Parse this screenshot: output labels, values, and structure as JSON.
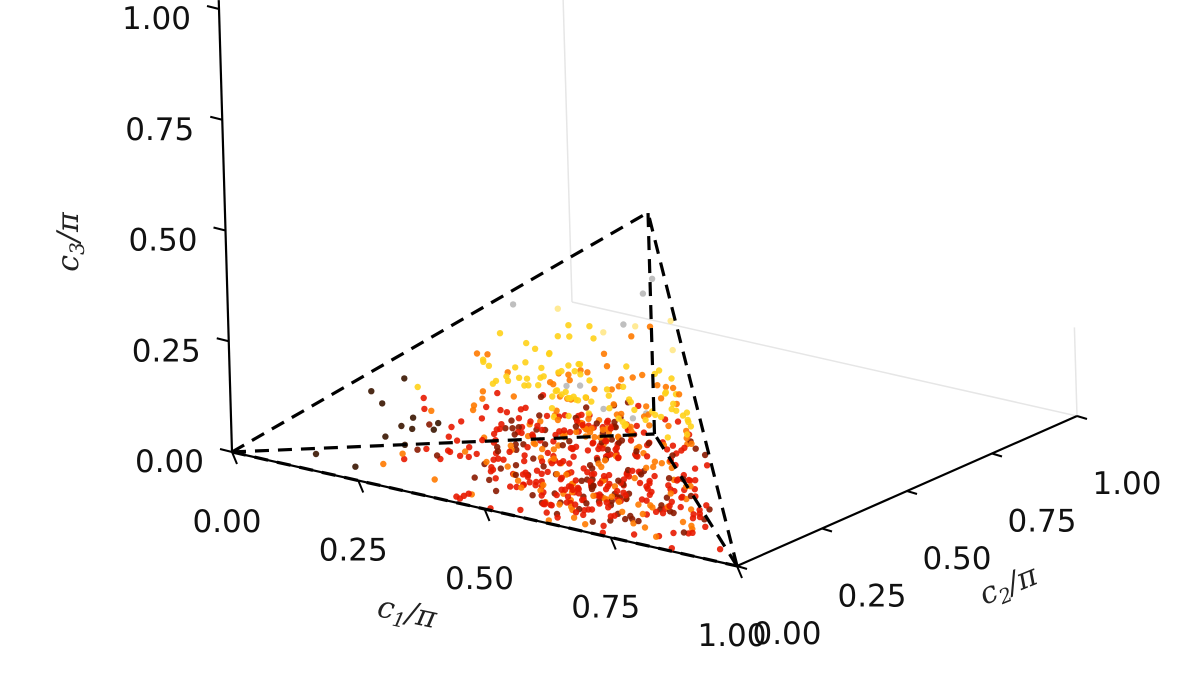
{
  "chart_data": {
    "type": "scatter",
    "projection": "3d",
    "axes": {
      "x": {
        "label_base": "c",
        "label_sub": "1",
        "label_tail": "/π",
        "ticks": [
          "0.00",
          "0.25",
          "0.50",
          "0.75",
          "1.00"
        ],
        "range": [
          0,
          1
        ]
      },
      "y": {
        "label_base": "c",
        "label_sub": "2",
        "label_tail": "/π",
        "ticks": [
          "0.00",
          "0.25",
          "0.50",
          "0.75",
          "1.00"
        ],
        "range": [
          0,
          1
        ]
      },
      "z": {
        "label_base": "c",
        "label_sub": "3",
        "label_tail": "/π",
        "ticks": [
          "0.00",
          "0.25",
          "0.50",
          "0.75",
          "1.00"
        ],
        "range": [
          0,
          1
        ]
      }
    },
    "boundary": {
      "style": "dashed",
      "color": "#000000",
      "vertices": {
        "origin": [
          0,
          0,
          0
        ],
        "c1_max": [
          1,
          0,
          0
        ],
        "mid": [
          0.5,
          0.5,
          0
        ],
        "apex": [
          0.5,
          0.5,
          0.5
        ]
      },
      "edges": [
        [
          "origin",
          "c1_max"
        ],
        [
          "origin",
          "mid"
        ],
        [
          "origin",
          "apex"
        ],
        [
          "c1_max",
          "mid"
        ],
        [
          "c1_max",
          "apex"
        ],
        [
          "mid",
          "apex"
        ]
      ]
    },
    "colormap": [
      "#3a1500",
      "#8a1a00",
      "#e81a00",
      "#ff7a00",
      "#ffd21a",
      "#ffe88a",
      "#b8b8b8"
    ],
    "point_count_estimate": 650,
    "grid": true,
    "legend": "none"
  }
}
